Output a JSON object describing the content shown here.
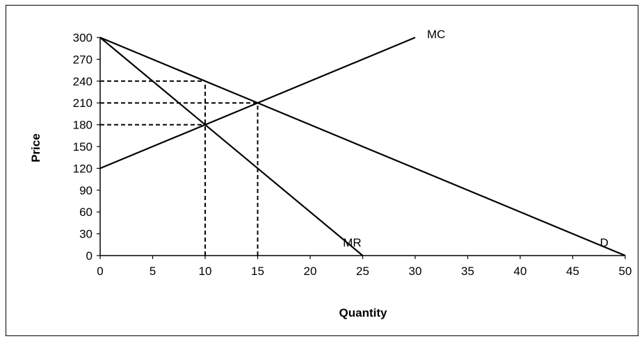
{
  "chart_data": {
    "type": "line",
    "title": "",
    "xlabel": "Quantity",
    "ylabel": "Price",
    "xlim": [
      0,
      50
    ],
    "ylim": [
      0,
      300
    ],
    "x_ticks": [
      0,
      5,
      10,
      15,
      20,
      25,
      30,
      35,
      40,
      45,
      50
    ],
    "y_ticks": [
      0,
      30,
      60,
      90,
      120,
      150,
      180,
      210,
      240,
      270,
      300
    ],
    "grid": false,
    "legend": "none",
    "series": [
      {
        "name": "D",
        "x": [
          0,
          50
        ],
        "y": [
          300,
          0
        ]
      },
      {
        "name": "MR",
        "x": [
          0,
          25
        ],
        "y": [
          300,
          0
        ]
      },
      {
        "name": "MC",
        "x": [
          0,
          30
        ],
        "y": [
          120,
          300
        ]
      }
    ],
    "reference_lines": [
      {
        "style": "dashed",
        "x": [
          0,
          10
        ],
        "y": [
          240,
          240
        ]
      },
      {
        "style": "dashed",
        "x": [
          0,
          15
        ],
        "y": [
          210,
          210
        ]
      },
      {
        "style": "dashed",
        "x": [
          0,
          10
        ],
        "y": [
          180,
          180
        ]
      },
      {
        "style": "dashed",
        "x": [
          10,
          10
        ],
        "y": [
          0,
          240
        ]
      },
      {
        "style": "dashed",
        "x": [
          15,
          15
        ],
        "y": [
          0,
          210
        ]
      }
    ],
    "curve_labels": [
      {
        "text": "MC",
        "x": 32,
        "y": 305
      },
      {
        "text": "MR",
        "x": 24,
        "y": 18
      },
      {
        "text": "D",
        "x": 48,
        "y": 18
      }
    ]
  }
}
